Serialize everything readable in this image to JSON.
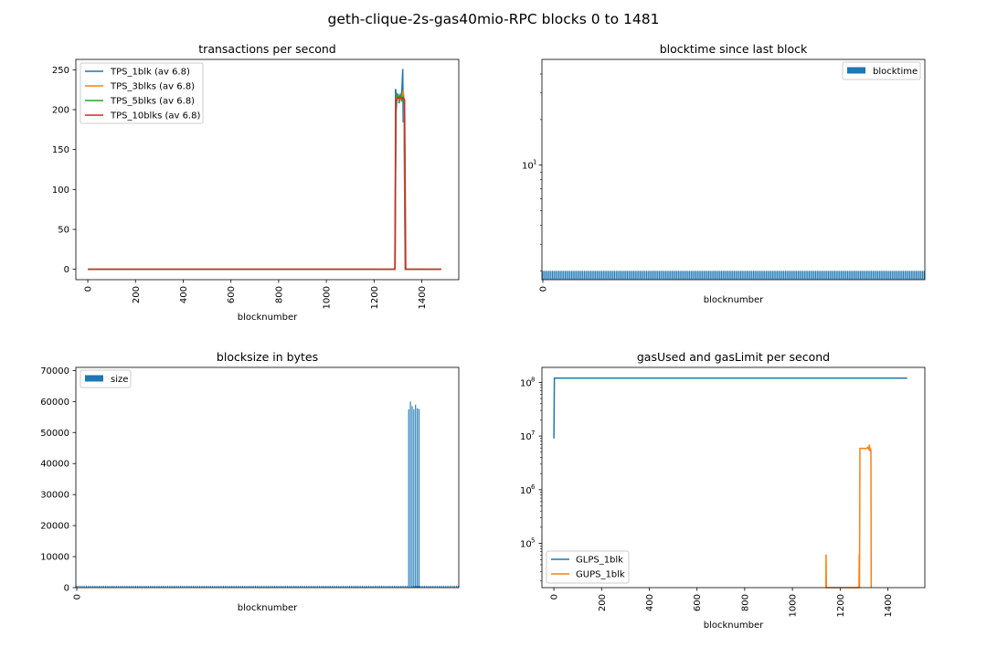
{
  "figure": {
    "suptitle": "geth-clique-2s-gas40mio-RPC blocks 0 to 1481"
  },
  "colors": {
    "blue": "#1f77b4",
    "orange": "#ff7f0e",
    "green": "#2ca02c",
    "red": "#d62728"
  },
  "chart_data": [
    {
      "type": "line",
      "title": "transactions per second",
      "xlabel": "blocknumber",
      "ylabel": "",
      "xlim": [
        -50,
        1555
      ],
      "ylim": [
        -13,
        263
      ],
      "xticks": [
        "0",
        "200",
        "400",
        "600",
        "800",
        "1000",
        "1200",
        "1400"
      ],
      "yticks": [
        "0",
        "50",
        "100",
        "150",
        "200",
        "250"
      ],
      "legend_position": "top-left",
      "grid": false,
      "series": [
        {
          "name": "TPS_1blk (av 6.8)",
          "color": "blue",
          "points": [
            [
              0,
              0
            ],
            [
              1288,
              0
            ],
            [
              1290,
              226
            ],
            [
              1295,
              216
            ],
            [
              1300,
              220
            ],
            [
              1305,
              208
            ],
            [
              1310,
              218
            ],
            [
              1315,
              212
            ],
            [
              1320,
              251
            ],
            [
              1322,
              184
            ],
            [
              1325,
              214
            ],
            [
              1330,
              0
            ],
            [
              1481,
              0
            ]
          ]
        },
        {
          "name": "TPS_3blks (av 6.8)",
          "color": "orange",
          "points": [
            [
              0,
              0
            ],
            [
              1288,
              0
            ],
            [
              1291,
              210
            ],
            [
              1297,
              219
            ],
            [
              1303,
              212
            ],
            [
              1310,
              216
            ],
            [
              1316,
              210
            ],
            [
              1322,
              224
            ],
            [
              1326,
              212
            ],
            [
              1331,
              0
            ],
            [
              1481,
              0
            ]
          ]
        },
        {
          "name": "TPS_5blks (av 6.8)",
          "color": "green",
          "points": [
            [
              0,
              0
            ],
            [
              1288,
              0
            ],
            [
              1292,
              196
            ],
            [
              1297,
              218
            ],
            [
              1304,
              215
            ],
            [
              1310,
              219
            ],
            [
              1316,
              212
            ],
            [
              1322,
              216
            ],
            [
              1327,
              208
            ],
            [
              1332,
              0
            ],
            [
              1481,
              0
            ]
          ]
        },
        {
          "name": "TPS_10blks (av 6.8)",
          "color": "red",
          "points": [
            [
              0,
              0
            ],
            [
              1287,
              0
            ],
            [
              1292,
              212
            ],
            [
              1298,
              215
            ],
            [
              1304,
              214
            ],
            [
              1310,
              215
            ],
            [
              1316,
              214
            ],
            [
              1322,
              215
            ],
            [
              1328,
              212
            ],
            [
              1333,
              0
            ],
            [
              1481,
              0
            ]
          ]
        }
      ]
    },
    {
      "type": "bar",
      "title": "blocktime since last block",
      "xlabel": "blocknumber",
      "ylabel": "",
      "yscale": "log",
      "ylim": [
        1.75,
        50
      ],
      "xticks": [
        "0"
      ],
      "yticks": [
        "10"
      ],
      "ytick_exponent": "1",
      "legend_position": "top-right",
      "series": [
        {
          "name": "blocktime",
          "color": "blue",
          "value_per_block": 2,
          "blocks": 1482
        }
      ]
    },
    {
      "type": "bar",
      "title": "blocksize in bytes",
      "xlabel": "blocknumber",
      "ylabel": "",
      "ylim": [
        0,
        71000
      ],
      "xticks": [
        "0"
      ],
      "yticks": [
        "0",
        "10000",
        "20000",
        "30000",
        "40000",
        "50000",
        "60000",
        "70000"
      ],
      "legend_position": "top-left",
      "series": [
        {
          "name": "size",
          "color": "blue",
          "baseline_value": 608,
          "spike_range": [
            1290,
            1330
          ],
          "spike_values": [
            57500,
            60000,
            58500,
            57500,
            59000,
            57800,
            57600
          ]
        }
      ]
    },
    {
      "type": "line",
      "title": "gasUsed and gasLimit per second",
      "xlabel": "blocknumber",
      "ylabel": "",
      "yscale": "log",
      "xlim": [
        -50,
        1555
      ],
      "ylim": [
        15000,
        190000000
      ],
      "xticks": [
        "0",
        "200",
        "400",
        "600",
        "800",
        "1000",
        "1200",
        "1400"
      ],
      "yticks": [
        {
          "base": "10",
          "exp": "8"
        },
        {
          "base": "10",
          "exp": "7"
        },
        {
          "base": "10",
          "exp": "6"
        },
        {
          "base": "10",
          "exp": "5"
        }
      ],
      "legend_position": "bottom-left",
      "series": [
        {
          "name": "GLPS_1blk",
          "color": "blue",
          "points": [
            [
              0,
              9000000
            ],
            [
              2,
              120000000
            ],
            [
              1481,
              120000000
            ]
          ]
        },
        {
          "name": "GUPS_1blk",
          "color": "orange",
          "points": [
            [
              1140,
              10
            ],
            [
              1141,
              62000
            ],
            [
              1142,
              10
            ],
            [
              1279,
              10
            ],
            [
              1280,
              62000
            ],
            [
              1281,
              10
            ],
            [
              1283,
              5900000
            ],
            [
              1300,
              5900000
            ],
            [
              1308,
              5800000
            ],
            [
              1315,
              6100000
            ],
            [
              1320,
              5700000
            ],
            [
              1323,
              6900000
            ],
            [
              1325,
              5200000
            ],
            [
              1327,
              5900000
            ],
            [
              1329,
              5300000
            ],
            [
              1330,
              10
            ]
          ]
        }
      ]
    }
  ]
}
